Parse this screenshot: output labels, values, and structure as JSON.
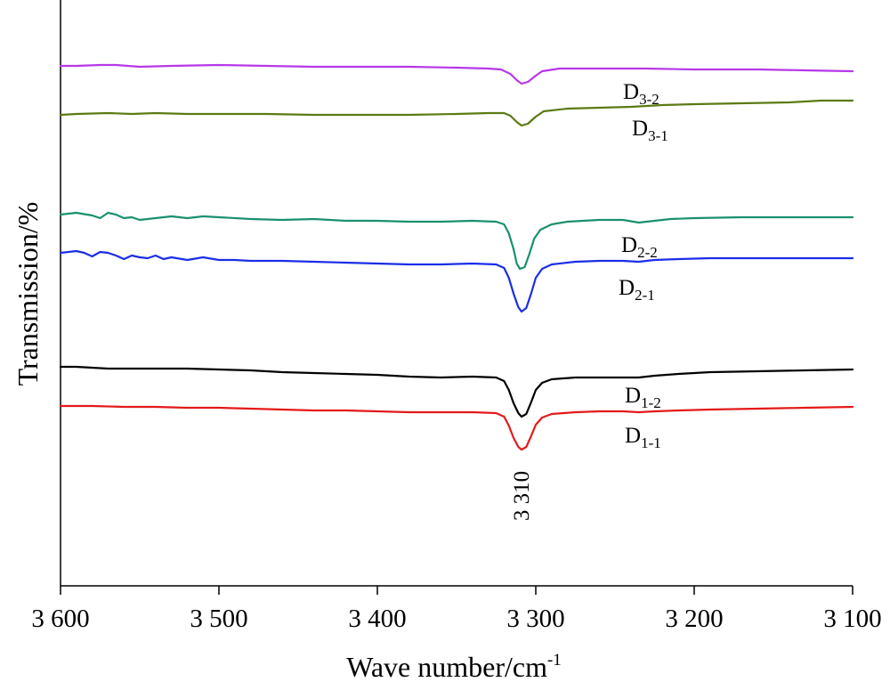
{
  "chart_data": {
    "type": "line",
    "title": "",
    "xlabel": "Wave number/cm",
    "xlabel_sup": "-1",
    "ylabel": "Transmission/%",
    "xlim": [
      3600,
      3100
    ],
    "x_reversed": true,
    "y_ticks_shown": false,
    "grid": false,
    "legend": "none (series labelled inline next to curves)",
    "x_ticks": [
      3600,
      3500,
      3400,
      3300,
      3200,
      3100
    ],
    "x_tick_labels": [
      "3 600",
      "3 500",
      "3 400",
      "3 300",
      "3 200",
      "3 100"
    ],
    "annotations": [
      {
        "text": "3 310",
        "x": 3310,
        "rotated": true
      }
    ],
    "series": [
      {
        "name": "D3-2",
        "base": "D",
        "sub": "3-2",
        "color": "#b638e8",
        "points": [
          [
            3600,
            74
          ],
          [
            3590,
            74
          ],
          [
            3575,
            73
          ],
          [
            3565,
            73
          ],
          [
            3550,
            75
          ],
          [
            3530,
            74
          ],
          [
            3500,
            73
          ],
          [
            3470,
            74
          ],
          [
            3440,
            75
          ],
          [
            3410,
            75
          ],
          [
            3380,
            75
          ],
          [
            3350,
            76
          ],
          [
            3330,
            77
          ],
          [
            3322,
            78
          ],
          [
            3316,
            83
          ],
          [
            3312,
            90
          ],
          [
            3309,
            94
          ],
          [
            3305,
            92
          ],
          [
            3300,
            85
          ],
          [
            3296,
            80
          ],
          [
            3285,
            77
          ],
          [
            3260,
            77
          ],
          [
            3230,
            77
          ],
          [
            3200,
            78
          ],
          [
            3160,
            78
          ],
          [
            3130,
            79
          ],
          [
            3100,
            80
          ]
        ]
      },
      {
        "name": "D3-1",
        "base": "D",
        "sub": "3-1",
        "color": "#5c7a12",
        "points": [
          [
            3600,
            129
          ],
          [
            3590,
            128
          ],
          [
            3570,
            127
          ],
          [
            3555,
            128
          ],
          [
            3540,
            127
          ],
          [
            3520,
            128
          ],
          [
            3500,
            128
          ],
          [
            3470,
            128
          ],
          [
            3440,
            129
          ],
          [
            3410,
            129
          ],
          [
            3380,
            129
          ],
          [
            3350,
            128
          ],
          [
            3330,
            127
          ],
          [
            3320,
            127
          ],
          [
            3316,
            130
          ],
          [
            3312,
            137
          ],
          [
            3309,
            141
          ],
          [
            3305,
            139
          ],
          [
            3300,
            131
          ],
          [
            3295,
            125
          ],
          [
            3280,
            122
          ],
          [
            3260,
            121
          ],
          [
            3240,
            120
          ],
          [
            3220,
            118
          ],
          [
            3200,
            117
          ],
          [
            3170,
            116
          ],
          [
            3140,
            115
          ],
          [
            3120,
            113
          ],
          [
            3100,
            113
          ]
        ]
      },
      {
        "name": "D2-2",
        "base": "D",
        "sub": "2-2",
        "color": "#1a9070",
        "points": [
          [
            3600,
            241
          ],
          [
            3595,
            240
          ],
          [
            3590,
            239
          ],
          [
            3580,
            242
          ],
          [
            3575,
            245
          ],
          [
            3570,
            239
          ],
          [
            3565,
            241
          ],
          [
            3560,
            245
          ],
          [
            3555,
            244
          ],
          [
            3550,
            247
          ],
          [
            3540,
            245
          ],
          [
            3530,
            243
          ],
          [
            3520,
            245
          ],
          [
            3510,
            243
          ],
          [
            3500,
            244
          ],
          [
            3480,
            246
          ],
          [
            3460,
            247
          ],
          [
            3440,
            246
          ],
          [
            3420,
            248
          ],
          [
            3400,
            248
          ],
          [
            3380,
            249
          ],
          [
            3360,
            249
          ],
          [
            3340,
            248
          ],
          [
            3325,
            249
          ],
          [
            3320,
            252
          ],
          [
            3317,
            262
          ],
          [
            3314,
            280
          ],
          [
            3312,
            296
          ],
          [
            3310,
            302
          ],
          [
            3307,
            300
          ],
          [
            3304,
            285
          ],
          [
            3301,
            268
          ],
          [
            3297,
            258
          ],
          [
            3290,
            252
          ],
          [
            3280,
            249
          ],
          [
            3260,
            247
          ],
          [
            3245,
            247
          ],
          [
            3235,
            250
          ],
          [
            3225,
            248
          ],
          [
            3215,
            246
          ],
          [
            3200,
            245
          ],
          [
            3170,
            244
          ],
          [
            3140,
            244
          ],
          [
            3120,
            244
          ],
          [
            3100,
            244
          ]
        ]
      },
      {
        "name": "D2-1",
        "base": "D",
        "sub": "2-1",
        "color": "#1a2ee6",
        "points": [
          [
            3600,
            284
          ],
          [
            3595,
            283
          ],
          [
            3590,
            282
          ],
          [
            3585,
            284
          ],
          [
            3580,
            288
          ],
          [
            3575,
            283
          ],
          [
            3570,
            284
          ],
          [
            3565,
            287
          ],
          [
            3560,
            291
          ],
          [
            3555,
            287
          ],
          [
            3550,
            289
          ],
          [
            3545,
            290
          ],
          [
            3540,
            287
          ],
          [
            3535,
            291
          ],
          [
            3530,
            289
          ],
          [
            3520,
            292
          ],
          [
            3510,
            289
          ],
          [
            3500,
            292
          ],
          [
            3490,
            292
          ],
          [
            3480,
            293
          ],
          [
            3460,
            293
          ],
          [
            3440,
            294
          ],
          [
            3420,
            295
          ],
          [
            3400,
            296
          ],
          [
            3380,
            297
          ],
          [
            3360,
            297
          ],
          [
            3340,
            296
          ],
          [
            3325,
            297
          ],
          [
            3320,
            301
          ],
          [
            3317,
            312
          ],
          [
            3314,
            330
          ],
          [
            3311,
            345
          ],
          [
            3309,
            350
          ],
          [
            3306,
            346
          ],
          [
            3303,
            330
          ],
          [
            3300,
            312
          ],
          [
            3296,
            302
          ],
          [
            3290,
            297
          ],
          [
            3275,
            294
          ],
          [
            3260,
            293
          ],
          [
            3245,
            293
          ],
          [
            3235,
            294
          ],
          [
            3225,
            292
          ],
          [
            3210,
            291
          ],
          [
            3190,
            290
          ],
          [
            3160,
            290
          ],
          [
            3130,
            290
          ],
          [
            3100,
            290
          ]
        ]
      },
      {
        "name": "D1-2",
        "base": "D",
        "sub": "1-2",
        "color": "#000000",
        "points": [
          [
            3600,
            412
          ],
          [
            3590,
            412
          ],
          [
            3580,
            413
          ],
          [
            3570,
            414
          ],
          [
            3555,
            414
          ],
          [
            3540,
            414
          ],
          [
            3520,
            414
          ],
          [
            3500,
            415
          ],
          [
            3480,
            416
          ],
          [
            3460,
            418
          ],
          [
            3440,
            419
          ],
          [
            3420,
            420
          ],
          [
            3400,
            421
          ],
          [
            3380,
            423
          ],
          [
            3360,
            424
          ],
          [
            3340,
            423
          ],
          [
            3325,
            424
          ],
          [
            3320,
            428
          ],
          [
            3317,
            438
          ],
          [
            3314,
            453
          ],
          [
            3311,
            464
          ],
          [
            3309,
            468
          ],
          [
            3306,
            465
          ],
          [
            3303,
            452
          ],
          [
            3300,
            438
          ],
          [
            3296,
            430
          ],
          [
            3290,
            426
          ],
          [
            3275,
            424
          ],
          [
            3260,
            424
          ],
          [
            3245,
            424
          ],
          [
            3235,
            424
          ],
          [
            3225,
            422
          ],
          [
            3210,
            420
          ],
          [
            3190,
            418
          ],
          [
            3160,
            417
          ],
          [
            3130,
            416
          ],
          [
            3100,
            415
          ]
        ]
      },
      {
        "name": "D1-1",
        "base": "D",
        "sub": "1-1",
        "color": "#e31a1a",
        "points": [
          [
            3600,
            456
          ],
          [
            3580,
            456
          ],
          [
            3560,
            457
          ],
          [
            3540,
            457
          ],
          [
            3520,
            458
          ],
          [
            3500,
            458
          ],
          [
            3480,
            459
          ],
          [
            3460,
            460
          ],
          [
            3440,
            461
          ],
          [
            3420,
            461
          ],
          [
            3400,
            462
          ],
          [
            3380,
            463
          ],
          [
            3360,
            463
          ],
          [
            3340,
            463
          ],
          [
            3325,
            464
          ],
          [
            3320,
            468
          ],
          [
            3317,
            478
          ],
          [
            3314,
            492
          ],
          [
            3311,
            502
          ],
          [
            3309,
            505
          ],
          [
            3306,
            502
          ],
          [
            3303,
            490
          ],
          [
            3300,
            477
          ],
          [
            3296,
            469
          ],
          [
            3290,
            465
          ],
          [
            3275,
            463
          ],
          [
            3260,
            462
          ],
          [
            3245,
            462
          ],
          [
            3235,
            463
          ],
          [
            3225,
            462
          ],
          [
            3210,
            461
          ],
          [
            3190,
            460
          ],
          [
            3160,
            459
          ],
          [
            3130,
            458
          ],
          [
            3100,
            457
          ]
        ]
      }
    ]
  }
}
